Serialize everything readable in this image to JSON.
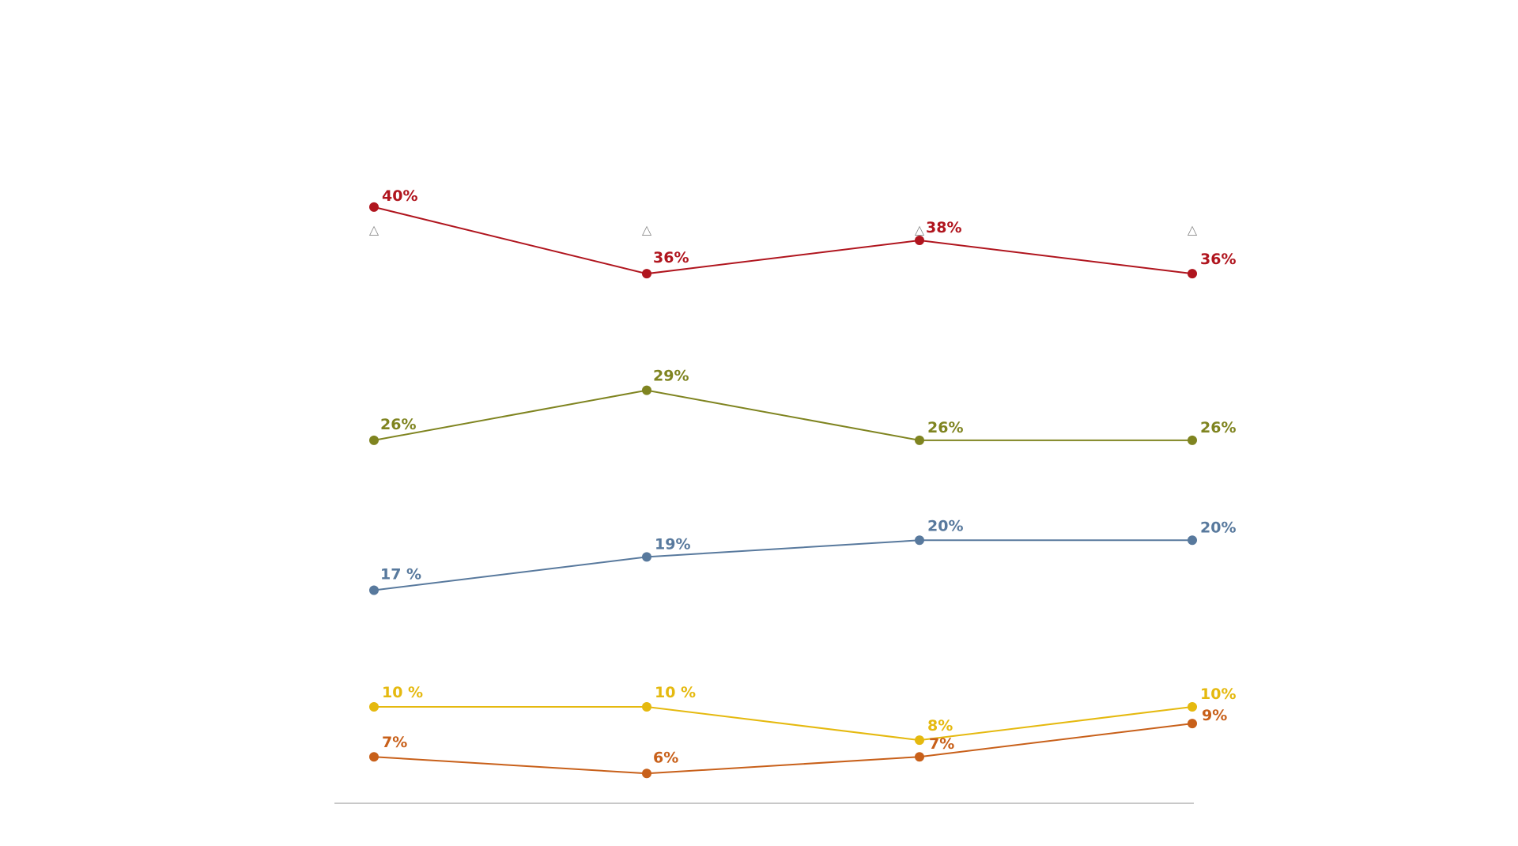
{
  "chart_data": {
    "type": "line",
    "title": "",
    "xlabel": "",
    "ylabel": "",
    "x": [
      "",
      "",
      "",
      ""
    ],
    "ylim": [
      5,
      45
    ],
    "grid": false,
    "legend": "none",
    "x_markers": [
      "△",
      "△",
      "△",
      "△"
    ],
    "series": [
      {
        "color": "#b0151e",
        "values": [
          40,
          36,
          38,
          36
        ],
        "labels": [
          "40%",
          "36%",
          "38%",
          "36%"
        ]
      },
      {
        "color": "#7f8420",
        "values": [
          26,
          29,
          26,
          26
        ],
        "labels": [
          "26%",
          "29%",
          "26%",
          "26%"
        ]
      },
      {
        "color": "#58799d",
        "values": [
          17,
          19,
          20,
          20
        ],
        "labels": [
          "17 %",
          "19%",
          "20%",
          "20%"
        ]
      },
      {
        "color": "#e5b90f",
        "values": [
          10,
          10,
          8,
          10
        ],
        "labels": [
          "10 %",
          "10 %",
          "8%",
          "10%"
        ]
      },
      {
        "color": "#c8601a",
        "values": [
          7,
          6,
          7,
          9
        ],
        "labels": [
          "7%",
          "6%",
          "7%",
          "9%"
        ]
      }
    ]
  }
}
